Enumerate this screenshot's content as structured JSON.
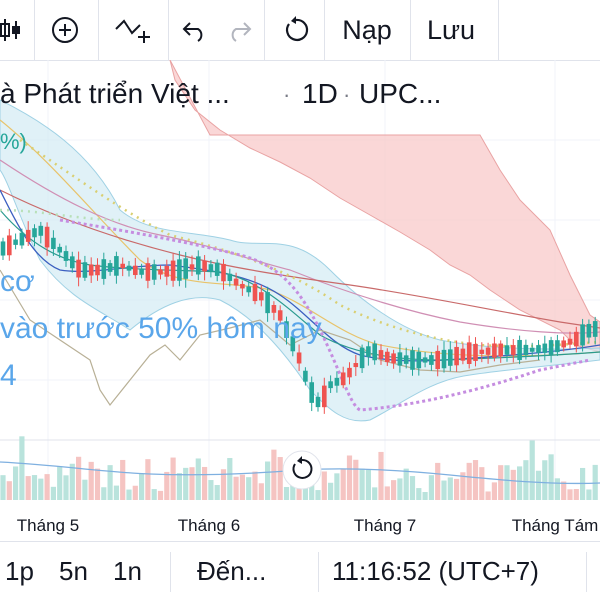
{
  "toolbar": {
    "load_label": "Nạp",
    "save_label": "Lưu"
  },
  "legend": {
    "symbol_name": "à Phát triển Việt ...",
    "interval": "1D",
    "exchange": "UPC...",
    "indicator_value": "%)"
  },
  "overlay": {
    "line1": "cơ",
    "line2": "vào trước 50% hôm nay",
    "line3": "4"
  },
  "chart_data": {
    "type": "candlestick",
    "x_labels": [
      "Tháng 5",
      "Tháng 6",
      "Tháng 7",
      "Tháng Tám"
    ],
    "title": "",
    "grid": true,
    "colors": {
      "up": "#26a69a",
      "down": "#ef5350",
      "cloud": "#f8c9c9",
      "band": "#d6eef4",
      "volume_up": "#b9e3dc",
      "volume_down": "#f5c4c2",
      "lagging_line": "#b8b096",
      "cross_line": "#c58de0"
    }
  },
  "bottom": {
    "tf1": "1p",
    "tf2": "5n",
    "tf3": "1n",
    "goto": "Đến...",
    "clock": "11:16:52 (UTC+7)"
  }
}
